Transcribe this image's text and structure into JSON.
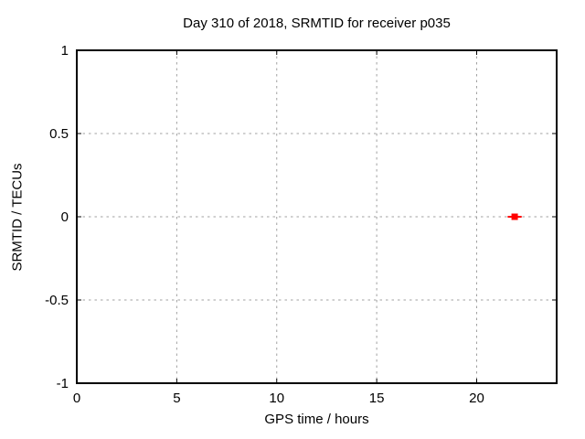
{
  "chart_data": {
    "type": "scatter",
    "title": "Day 310 of 2018, SRMTID for receiver p035",
    "xlabel": "GPS time / hours",
    "ylabel": "SRMTID / TECUs",
    "xlim": [
      0,
      24
    ],
    "ylim": [
      -1,
      1
    ],
    "xticks": [
      0,
      5,
      10,
      15,
      20
    ],
    "xtick_labels": [
      "0",
      "5",
      "10",
      "15",
      "20"
    ],
    "yticks": [
      -1,
      -0.5,
      0,
      0.5,
      1
    ],
    "ytick_labels": [
      "-1",
      "-0.5",
      "0",
      "0.5",
      "1"
    ],
    "grid": true,
    "grid_style": "dotted",
    "legend": "none",
    "series": [
      {
        "name": "SRMTID",
        "marker": "filled-square",
        "color": "#ff0000",
        "points": [
          {
            "x": 21.9,
            "y": 0.0,
            "xerr": 0.35
          }
        ]
      }
    ],
    "colors": {
      "background": "#ffffff",
      "axis": "#000000",
      "grid": "#a0a0a0",
      "text": "#000000",
      "point": "#ff0000"
    }
  }
}
